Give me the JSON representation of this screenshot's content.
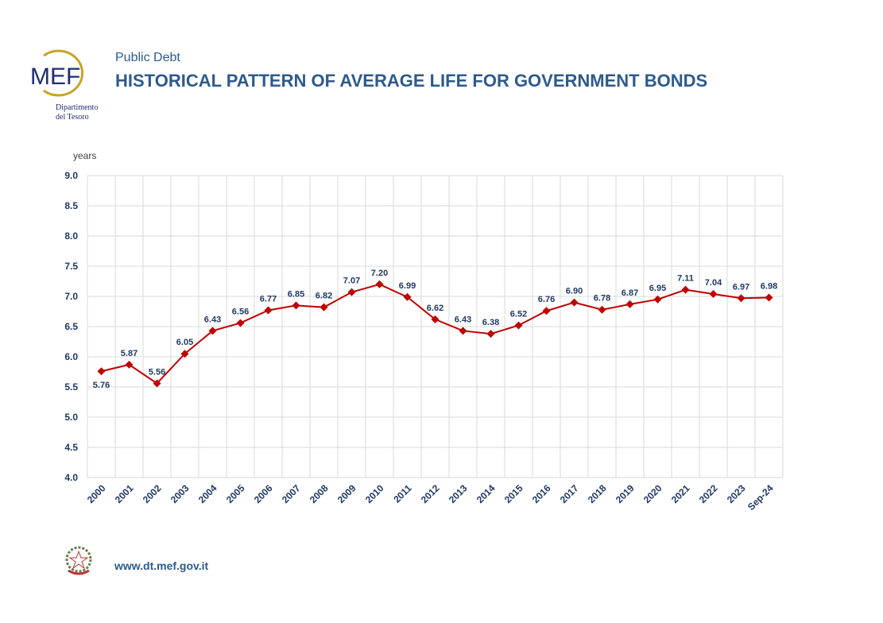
{
  "header": {
    "subtitle": "Public Debt",
    "title": "HISTORICAL PATTERN OF AVERAGE LIFE FOR GOVERNMENT BONDS",
    "logo_text": "MEF",
    "dept_line1": "Dipartimento",
    "dept_line2": "del Tesoro"
  },
  "footer": {
    "url": "www.dt.mef.gov.it",
    "emblem": "italian-republic-emblem"
  },
  "chart_data": {
    "type": "line",
    "title": "HISTORICAL PATTERN OF AVERAGE LIFE FOR GOVERNMENT BONDS",
    "ylabel": "years",
    "xlabel": "",
    "ylim": [
      4.0,
      9.0
    ],
    "yticks": [
      "4.0",
      "4.5",
      "5.0",
      "5.5",
      "6.0",
      "6.5",
      "7.0",
      "7.5",
      "8.0",
      "8.5",
      "9.0"
    ],
    "grid": true,
    "categories": [
      "2000",
      "2001",
      "2002",
      "2003",
      "2004",
      "2005",
      "2006",
      "2007",
      "2008",
      "2009",
      "2010",
      "2011",
      "2012",
      "2013",
      "2014",
      "2015",
      "2016",
      "2017",
      "2018",
      "2019",
      "2020",
      "2021",
      "2022",
      "2023",
      "Sep-24"
    ],
    "values": [
      5.76,
      5.87,
      5.56,
      6.05,
      6.43,
      6.56,
      6.77,
      6.85,
      6.82,
      7.07,
      7.2,
      6.99,
      6.62,
      6.43,
      6.38,
      6.52,
      6.76,
      6.9,
      6.78,
      6.87,
      6.95,
      7.11,
      7.04,
      6.97,
      6.98
    ],
    "labels": [
      "5.76",
      "5.87",
      "5.56",
      "6.05",
      "6.43",
      "6.56",
      "6.77",
      "6.85",
      "6.82",
      "7.07",
      "7.20",
      "6.99",
      "6.62",
      "6.43",
      "6.38",
      "6.52",
      "6.76",
      "6.90",
      "6.78",
      "6.87",
      "6.95",
      "7.11",
      "7.04",
      "6.97",
      "6.98"
    ],
    "colors": {
      "line": "#c00000",
      "text": "#1f3864",
      "grid": "#d9d9d9"
    }
  }
}
